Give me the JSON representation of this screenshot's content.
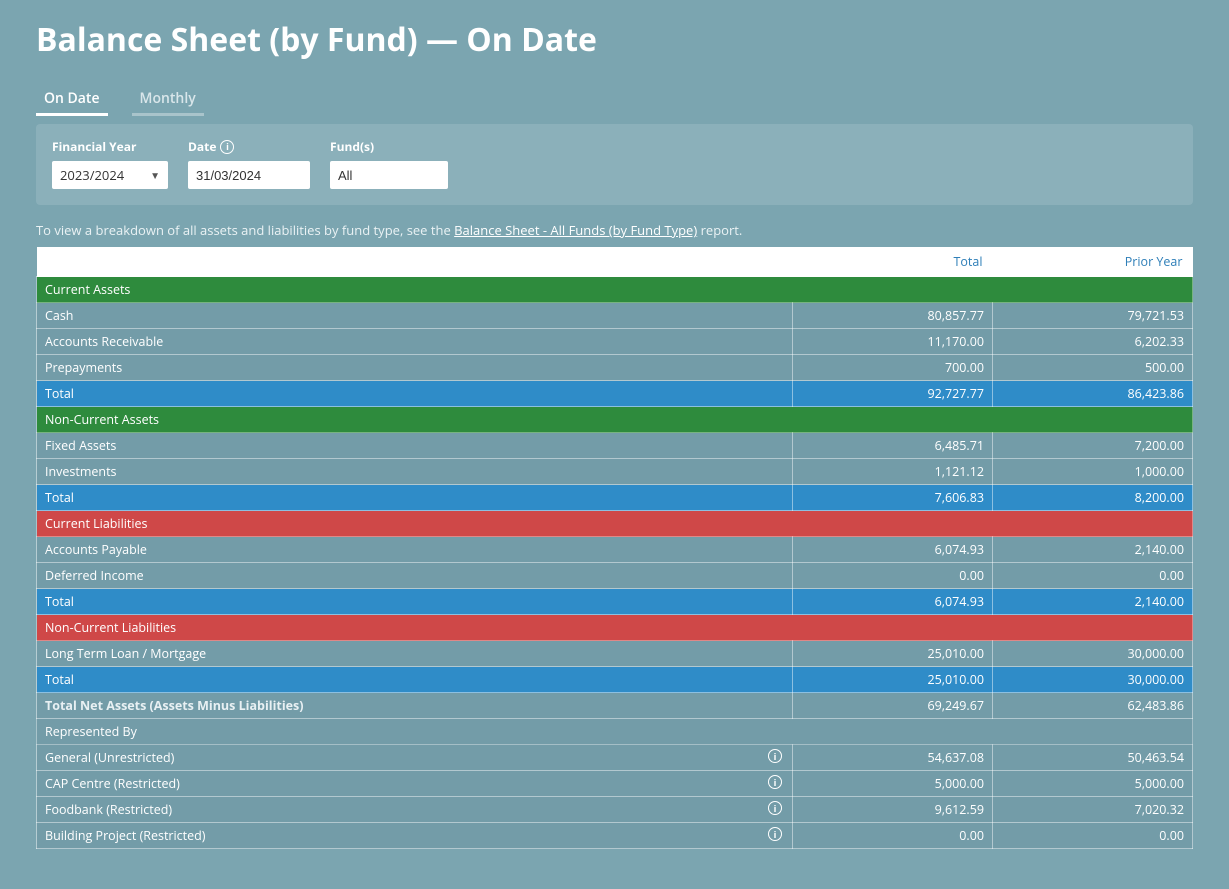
{
  "title": "Balance Sheet (by Fund) — On Date",
  "tabs": {
    "ondate": "On Date",
    "monthly": "Monthly"
  },
  "filters": {
    "fy_label": "Financial Year",
    "fy_value": "2023/2024",
    "date_label": "Date",
    "date_value": "31/03/2024",
    "funds_label": "Fund(s)",
    "funds_value": "All"
  },
  "note_prefix": "To view a breakdown of all assets and liabilities by fund type, see the ",
  "note_link": "Balance Sheet - All Funds (by Fund Type)",
  "note_suffix": " report.",
  "columns": {
    "c0": "",
    "c1": "Total",
    "c2": "Prior Year"
  },
  "sections": {
    "ca": "Current Assets",
    "nca": "Non-Current Assets",
    "cl": "Current Liabilities",
    "ncl": "Non-Current Liabilities",
    "rep": "Represented By"
  },
  "rows": {
    "cash": {
      "label": "Cash",
      "total": "80,857.77",
      "prior": "79,721.53"
    },
    "ar": {
      "label": "Accounts Receivable",
      "total": "11,170.00",
      "prior": "6,202.33"
    },
    "prepay": {
      "label": "Prepayments",
      "total": "700.00",
      "prior": "500.00"
    },
    "ca_total": {
      "label": "Total",
      "total": "92,727.77",
      "prior": "86,423.86"
    },
    "fixed": {
      "label": "Fixed Assets",
      "total": "6,485.71",
      "prior": "7,200.00"
    },
    "invest": {
      "label": "Investments",
      "total": "1,121.12",
      "prior": "1,000.00"
    },
    "nca_total": {
      "label": "Total",
      "total": "7,606.83",
      "prior": "8,200.00"
    },
    "ap": {
      "label": "Accounts Payable",
      "total": "6,074.93",
      "prior": "2,140.00"
    },
    "defin": {
      "label": "Deferred Income",
      "total": "0.00",
      "prior": "0.00"
    },
    "cl_total": {
      "label": "Total",
      "total": "6,074.93",
      "prior": "2,140.00"
    },
    "loan": {
      "label": "Long Term Loan / Mortgage",
      "total": "25,010.00",
      "prior": "30,000.00"
    },
    "ncl_total": {
      "label": "Total",
      "total": "25,010.00",
      "prior": "30,000.00"
    },
    "netassets": {
      "label": "Total Net Assets (Assets Minus Liabilities)",
      "total": "69,249.67",
      "prior": "62,483.86"
    },
    "general": {
      "label": "General (Unrestricted)",
      "total": "54,637.08",
      "prior": "50,463.54"
    },
    "cap": {
      "label": "CAP Centre (Restricted)",
      "total": "5,000.00",
      "prior": "5,000.00"
    },
    "foodbank": {
      "label": "Foodbank (Restricted)",
      "total": "9,612.59",
      "prior": "7,020.32"
    },
    "building": {
      "label": "Building Project (Restricted)",
      "total": "0.00",
      "prior": "0.00"
    }
  }
}
